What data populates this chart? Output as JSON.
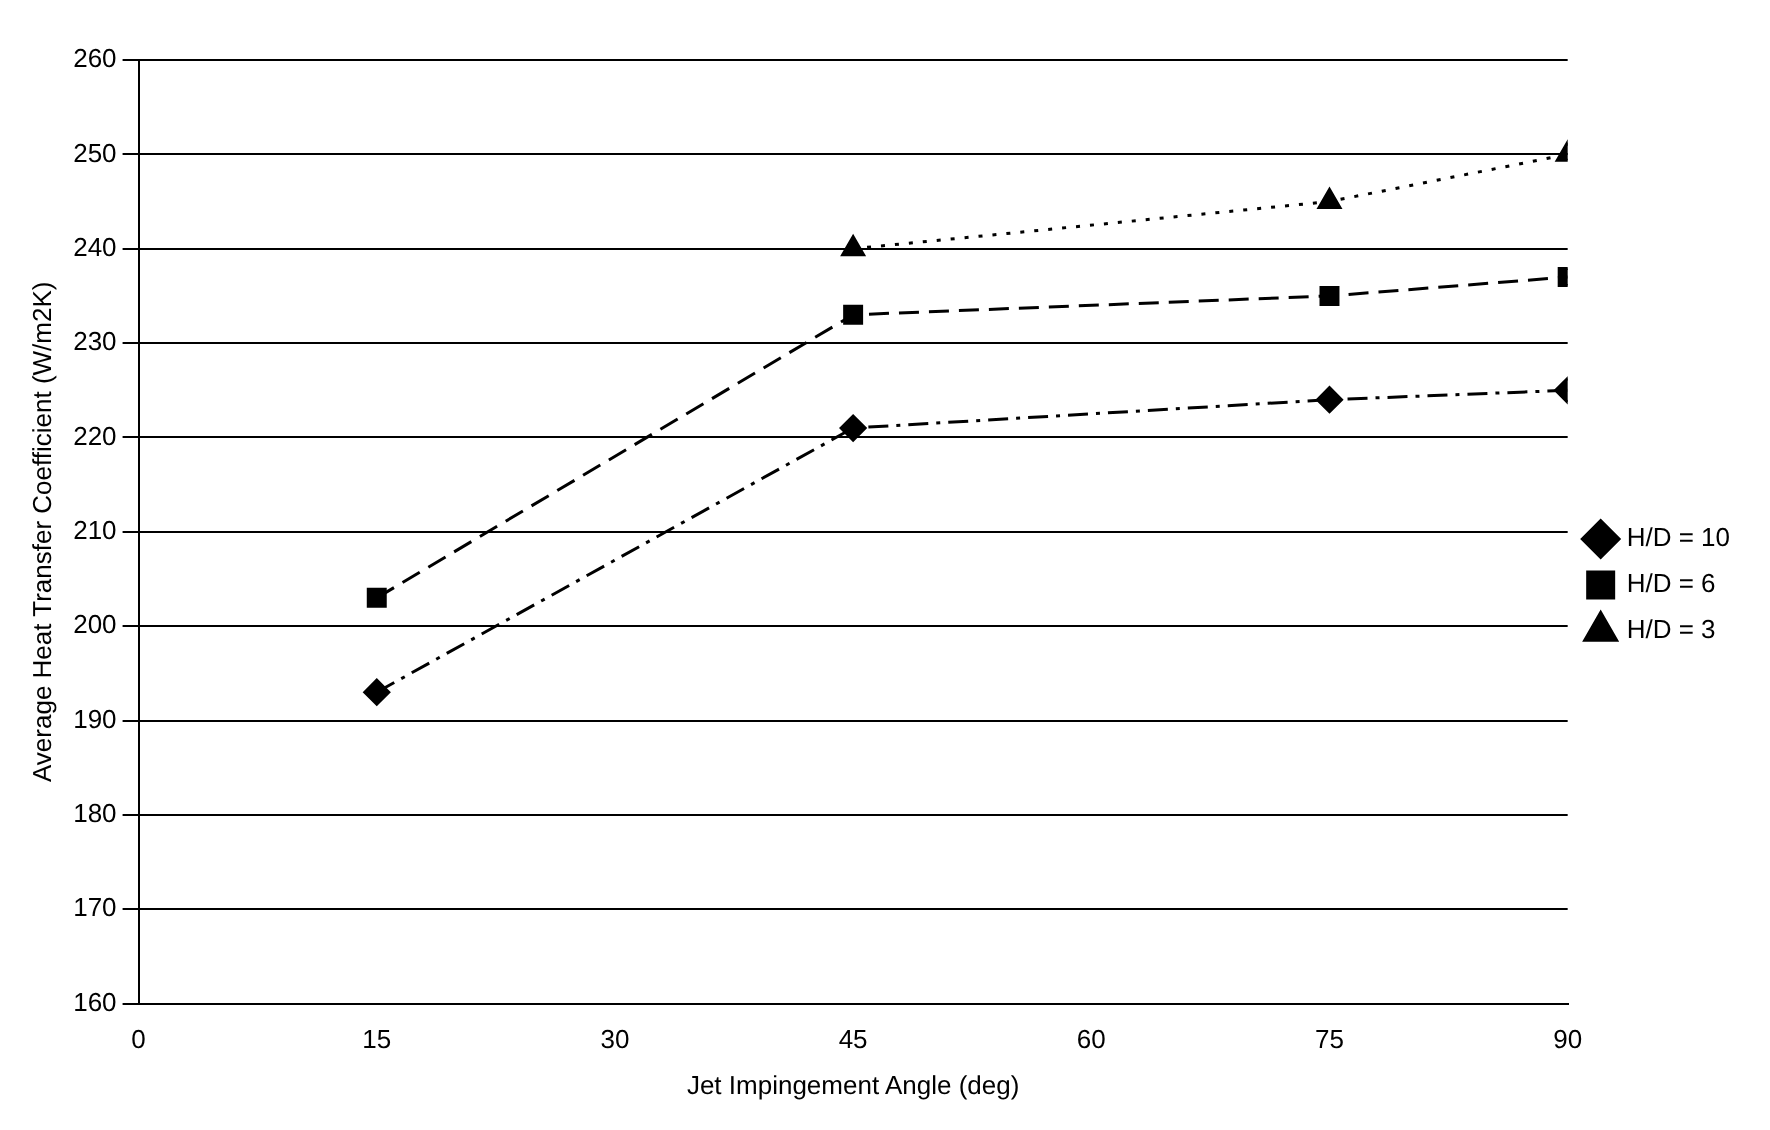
{
  "chart_data": {
    "type": "line",
    "xlabel": "Jet Impingement Angle (deg)",
    "ylabel": "Average Heat Transfer Coefficient (W/m2K)",
    "xlim": [
      0,
      90
    ],
    "xticks": [
      0,
      15,
      30,
      45,
      60,
      75,
      90
    ],
    "ylim": [
      160,
      260
    ],
    "yticks": [
      160,
      170,
      180,
      190,
      200,
      210,
      220,
      230,
      240,
      250,
      260
    ],
    "grid": "y",
    "legend": "right",
    "series": [
      {
        "name": "H/D = 10",
        "color": "#000000",
        "marker": "diamond",
        "line_style": "dashdot",
        "x": [
          15,
          45,
          75,
          90
        ],
        "values": [
          193,
          221,
          224,
          225
        ]
      },
      {
        "name": "H/D = 6",
        "color": "#000000",
        "marker": "square",
        "line_style": "dashed",
        "x": [
          15,
          45,
          75,
          90
        ],
        "values": [
          203,
          233,
          235,
          237
        ]
      },
      {
        "name": "H/D = 3",
        "color": "#000000",
        "marker": "triangle",
        "line_style": "dotted",
        "x": [
          45,
          75,
          90
        ],
        "values": [
          240,
          245,
          250
        ]
      }
    ]
  }
}
